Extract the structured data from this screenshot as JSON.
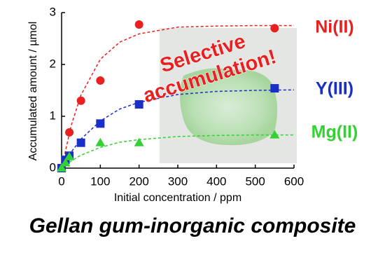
{
  "chart_data": {
    "type": "scatter",
    "title": "Gellan gum-inorganic composite",
    "x_label": "Initial concentration / ppm",
    "y_label": "Accumulated amount / µmol",
    "annotation": [
      "Selective",
      "accumulation!"
    ],
    "xlim": [
      0,
      600
    ],
    "xticks": [
      0,
      100,
      200,
      300,
      400,
      500,
      600
    ],
    "ylim": [
      0,
      3
    ],
    "yticks": [
      0,
      1,
      2,
      3
    ],
    "series": [
      {
        "name": "Ni(II)",
        "color": "#e82020",
        "marker": "circle",
        "x": [
          0,
          20,
          50,
          100,
          200,
          550
        ],
        "values": [
          0,
          0.69,
          1.3,
          1.69,
          2.77,
          2.7
        ],
        "curve": {
          "x": [
            0,
            25,
            50,
            100,
            150,
            200,
            300,
            400,
            500,
            600
          ],
          "values": [
            0,
            0.83,
            1.41,
            2.1,
            2.43,
            2.59,
            2.72,
            2.74,
            2.75,
            2.75
          ]
        }
      },
      {
        "name": "Y(III)",
        "color": "#1a2fc8",
        "marker": "square",
        "x": [
          0,
          10,
          20,
          50,
          100,
          200,
          550
        ],
        "values": [
          0,
          0.16,
          0.24,
          0.49,
          0.86,
          1.23,
          1.54
        ],
        "curve": {
          "x": [
            0,
            25,
            50,
            100,
            150,
            200,
            300,
            400,
            500,
            600
          ],
          "values": [
            0,
            0.31,
            0.56,
            0.91,
            1.14,
            1.27,
            1.42,
            1.48,
            1.5,
            1.51
          ]
        }
      },
      {
        "name": "Mg(II)",
        "color": "#33d133",
        "marker": "triangle",
        "x": [
          0,
          10,
          20,
          100,
          200,
          550
        ],
        "values": [
          0,
          0.1,
          0.22,
          0.49,
          0.49,
          0.64
        ],
        "curve": {
          "x": [
            0,
            25,
            50,
            100,
            150,
            200,
            300,
            400,
            500,
            600
          ],
          "values": [
            0,
            0.14,
            0.25,
            0.4,
            0.5,
            0.55,
            0.61,
            0.63,
            0.64,
            0.64
          ]
        }
      }
    ]
  }
}
